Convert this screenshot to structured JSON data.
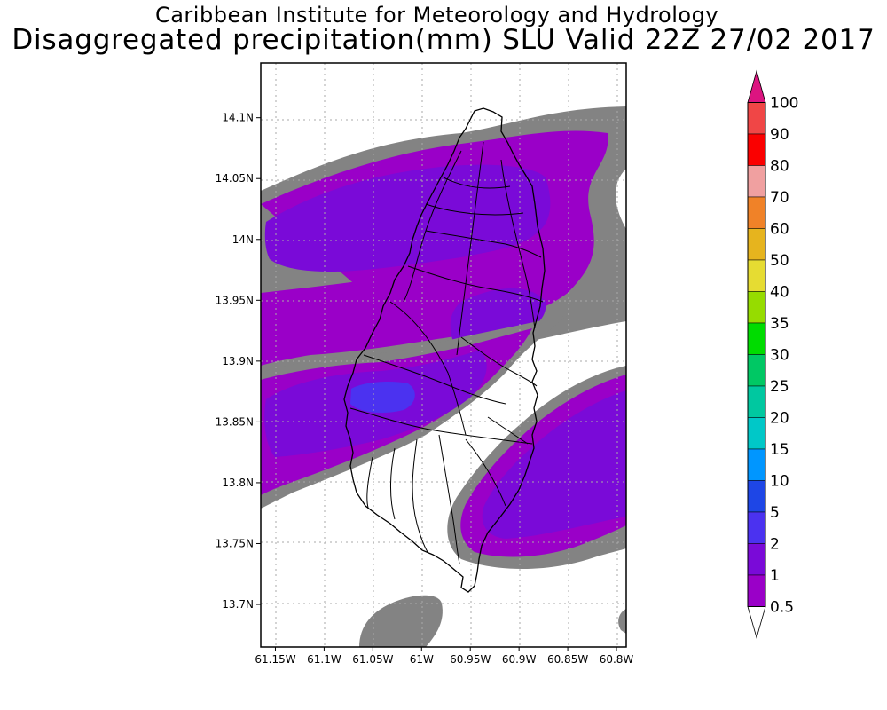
{
  "title": {
    "line1": "Caribbean Institute for Meteorology and Hydrology",
    "line2": "Disaggregated precipitation(mm) SLU Valid 22Z 27/02 2017"
  },
  "map": {
    "lon_range": [
      -61.165,
      -60.79
    ],
    "lat_range": [
      13.665,
      14.145
    ],
    "x_ticks": [
      {
        "lon": -61.15,
        "label": "61.15W"
      },
      {
        "lon": -61.1,
        "label": "61.1W"
      },
      {
        "lon": -61.05,
        "label": "61.05W"
      },
      {
        "lon": -61.0,
        "label": "61W"
      },
      {
        "lon": -60.95,
        "label": "60.95W"
      },
      {
        "lon": -60.9,
        "label": "60.9W"
      },
      {
        "lon": -60.85,
        "label": "60.85W"
      },
      {
        "lon": -60.8,
        "label": "60.8W"
      }
    ],
    "y_ticks": [
      {
        "lat": 14.1,
        "label": "14.1N"
      },
      {
        "lat": 14.05,
        "label": "14.05N"
      },
      {
        "lat": 14.0,
        "label": "14N"
      },
      {
        "lat": 13.95,
        "label": "13.95N"
      },
      {
        "lat": 13.9,
        "label": "13.9N"
      },
      {
        "lat": 13.85,
        "label": "13.85N"
      },
      {
        "lat": 13.8,
        "label": "13.8N"
      },
      {
        "lat": 13.75,
        "label": "13.75N"
      },
      {
        "lat": 13.7,
        "label": "13.7N"
      }
    ],
    "grid": "dotted"
  },
  "colorbar": {
    "colors": [
      "#838383",
      "#9a00c8",
      "#7a0ad8",
      "#4b32f0",
      "#1e46e6",
      "#0096ff",
      "#00c8c8",
      "#00c8a0",
      "#00c864",
      "#00dc00",
      "#96dc00",
      "#e6dc32",
      "#e6b41e",
      "#f08228",
      "#f0a0a0",
      "#fa0000",
      "#f04646",
      "#dc1480"
    ],
    "labels": [
      "0.5",
      "1",
      "2",
      "5",
      "10",
      "15",
      "20",
      "25",
      "30",
      "35",
      "40",
      "50",
      "60",
      "70",
      "80",
      "90",
      "100"
    ]
  },
  "legend_colors": {
    "gray": "#838383",
    "magenta": "#9a00c8",
    "violet": "#7a0ad8",
    "blue": "#4b32f0"
  }
}
